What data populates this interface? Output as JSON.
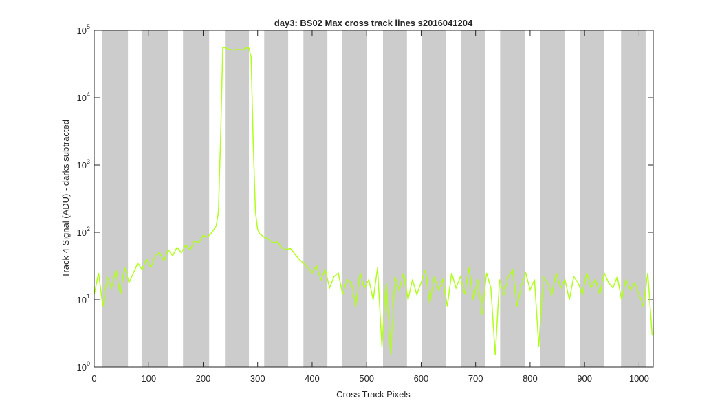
{
  "chart_data": {
    "type": "line",
    "title": "day3: BS02  Max cross track lines  s2016041204",
    "x_label": "Cross Track Pixels",
    "y_label": "Track 4 Signal (ADU) - darks subtracted",
    "xlim": [
      0,
      1026
    ],
    "ylim": [
      1,
      100000
    ],
    "y_log": true,
    "xticks": [
      0,
      100,
      200,
      300,
      400,
      500,
      600,
      700,
      800,
      900,
      1000
    ],
    "yticks": [
      {
        "value": 1,
        "label": "10^0"
      },
      {
        "value": 10,
        "label": "10^1"
      },
      {
        "value": 100,
        "label": "10^2"
      },
      {
        "value": 1000,
        "label": "10^3"
      },
      {
        "value": 10000,
        "label": "10^4"
      },
      {
        "value": 100000,
        "label": "10^5"
      }
    ],
    "band_color": "#cccccc",
    "bands": [
      [
        14,
        62
      ],
      [
        87,
        136
      ],
      [
        163,
        211
      ],
      [
        240,
        284
      ],
      [
        312,
        356
      ],
      [
        384,
        428
      ],
      [
        455,
        501
      ],
      [
        530,
        574
      ],
      [
        601,
        646
      ],
      [
        673,
        717
      ],
      [
        745,
        790
      ],
      [
        818,
        864
      ],
      [
        891,
        936
      ],
      [
        967,
        1012
      ]
    ],
    "x": [
      0,
      8,
      16,
      24,
      32,
      40,
      48,
      56,
      64,
      72,
      80,
      88,
      96,
      104,
      112,
      120,
      128,
      136,
      144,
      152,
      160,
      168,
      176,
      184,
      192,
      200,
      208,
      216,
      224,
      228,
      232,
      236,
      240,
      248,
      256,
      264,
      272,
      280,
      284,
      288,
      292,
      296,
      300,
      304,
      312,
      320,
      328,
      336,
      344,
      352,
      360,
      368,
      376,
      384,
      392,
      400,
      408,
      416,
      424,
      432,
      440,
      448,
      456,
      464,
      472,
      480,
      488,
      496,
      504,
      512,
      520,
      528,
      536,
      544,
      552,
      560,
      568,
      576,
      584,
      592,
      600,
      608,
      616,
      624,
      632,
      640,
      648,
      656,
      664,
      672,
      680,
      688,
      696,
      704,
      712,
      720,
      728,
      736,
      744,
      752,
      760,
      768,
      776,
      784,
      792,
      800,
      808,
      816,
      824,
      832,
      840,
      848,
      856,
      864,
      872,
      880,
      888,
      896,
      904,
      912,
      920,
      928,
      936,
      944,
      952,
      960,
      968,
      976,
      984,
      992,
      1000,
      1008,
      1016,
      1024
    ],
    "series": [
      {
        "color": "#b0ff1a",
        "values": [
          12,
          25,
          8,
          22,
          15,
          28,
          12,
          30,
          18,
          25,
          35,
          28,
          40,
          30,
          45,
          50,
          38,
          55,
          45,
          60,
          50,
          65,
          55,
          75,
          70,
          90,
          85,
          100,
          125,
          200,
          2500,
          55000,
          55000,
          52000,
          51000,
          52000,
          51000,
          55000,
          54000,
          40000,
          2000,
          200,
          110,
          95,
          85,
          80,
          70,
          72,
          60,
          55,
          58,
          48,
          40,
          35,
          30,
          25,
          32,
          20,
          28,
          15,
          22,
          25,
          12,
          20,
          18,
          8,
          25,
          15,
          20,
          10,
          30,
          2,
          18,
          1.5,
          22,
          14,
          25,
          10,
          20,
          12,
          18,
          28,
          9,
          22,
          14,
          20,
          8,
          25,
          15,
          22,
          12,
          30,
          10,
          20,
          6,
          25,
          15,
          1.5,
          20,
          12,
          22,
          28,
          8,
          16,
          25,
          14,
          20,
          2,
          22,
          18,
          12,
          25,
          15,
          20,
          10,
          22,
          18,
          12,
          25,
          15,
          20,
          12,
          25,
          18,
          15,
          22,
          10,
          20,
          14,
          18,
          12,
          8,
          25,
          3
        ]
      }
    ]
  }
}
